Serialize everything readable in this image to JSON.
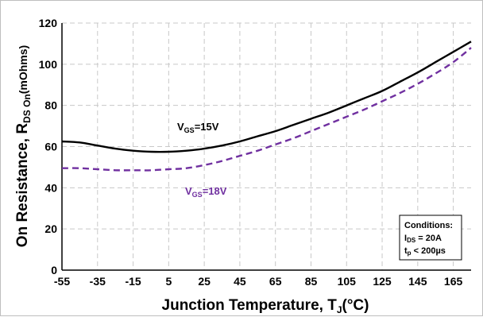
{
  "chart_data": {
    "type": "line",
    "xlabel": {
      "main": "Junction Temperature, T",
      "sub": "J",
      "unit": "(°C)"
    },
    "ylabel": {
      "main": "On Resistance, R",
      "sub": "DS On",
      "unit": "(mOhms)"
    },
    "xlim": [
      -55,
      175
    ],
    "ylim": [
      0,
      120
    ],
    "xticks": [
      -55,
      -35,
      -15,
      5,
      25,
      45,
      65,
      85,
      105,
      125,
      145,
      165
    ],
    "yticks": [
      0,
      20,
      40,
      60,
      80,
      100,
      120
    ],
    "grid": true,
    "series": [
      {
        "name": "V_GS=15V",
        "label_main": "V",
        "label_sub": "GS",
        "label_rest": "=15V",
        "color": "#000000",
        "style": "solid",
        "x": [
          -55,
          -45,
          -35,
          -25,
          -15,
          -5,
          5,
          15,
          25,
          35,
          45,
          55,
          65,
          75,
          85,
          95,
          105,
          115,
          125,
          135,
          145,
          155,
          165,
          175
        ],
        "y": [
          62.5,
          62,
          60.5,
          59,
          58,
          57.5,
          57.5,
          58,
          59,
          60.5,
          62.5,
          65,
          67.5,
          70.5,
          73.5,
          76.5,
          80,
          83.5,
          87,
          91.5,
          96,
          101,
          106,
          111
        ]
      },
      {
        "name": "V_GS=18V",
        "label_main": "V",
        "label_sub": "GS",
        "label_rest": "=18V",
        "color": "#7030a0",
        "style": "dashed",
        "x": [
          -55,
          -45,
          -35,
          -25,
          -15,
          -5,
          5,
          15,
          25,
          35,
          45,
          55,
          65,
          75,
          85,
          95,
          105,
          115,
          125,
          135,
          145,
          155,
          165,
          175
        ],
        "y": [
          49.5,
          49.5,
          49,
          48.5,
          48.5,
          48.5,
          49,
          49.5,
          51,
          53,
          55.5,
          58,
          61,
          64,
          67.5,
          71,
          74.5,
          78,
          82,
          86,
          90.5,
          95.5,
          101,
          108
        ]
      }
    ],
    "conditions": {
      "title": "Conditions:",
      "line1_main": "I",
      "line1_sub": "DS",
      "line1_rest": " = 20A",
      "line2_main": "t",
      "line2_sub": "p",
      "line2_rest": " < 200µs"
    }
  }
}
